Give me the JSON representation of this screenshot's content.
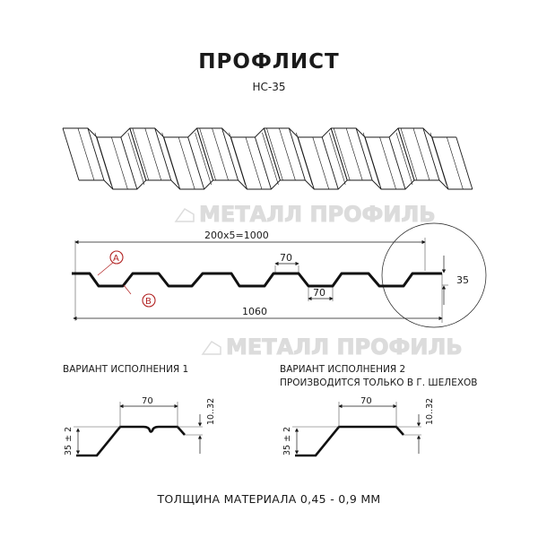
{
  "header": {
    "title": "ПРОФЛИСТ",
    "subtitle": "НС-35"
  },
  "watermark": {
    "text": "МЕТАЛЛ ПРОФИЛЬ",
    "color": "#d9d9d9"
  },
  "profile": {
    "pitch_label": "200х5=1000",
    "width_label": "1060",
    "top_flat_label": "70",
    "bottom_flat_label": "70",
    "height_label": "35",
    "marker_a": "A",
    "marker_b": "B",
    "marker_color": "#b22222"
  },
  "variants": [
    {
      "title": "ВАРИАНТ ИСПОЛНЕНИЯ 1",
      "note": "",
      "flat_label": "70",
      "height_label": "35 ± 2",
      "edge_label": "10..32"
    },
    {
      "title": "ВАРИАНТ ИСПОЛНЕНИЯ 2",
      "note": "ПРОИЗВОДИТСЯ ТОЛЬКО В Г. ШЕЛЕХОВ",
      "flat_label": "70",
      "height_label": "35 ± 2",
      "edge_label": "10..32"
    }
  ],
  "footer": {
    "thickness": "ТОЛЩИНА МАТЕРИАЛА 0,45 - 0,9 ММ"
  }
}
